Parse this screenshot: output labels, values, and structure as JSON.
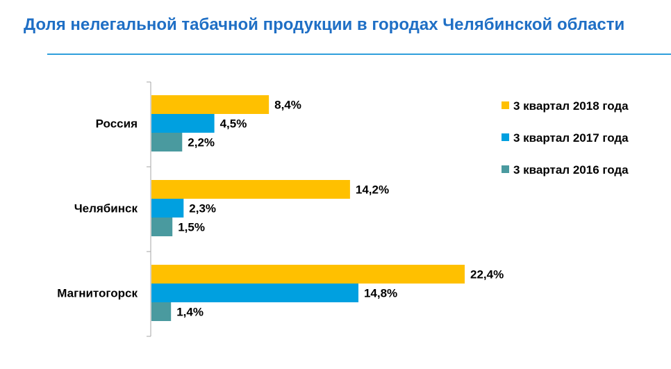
{
  "title": "Доля нелегальной табачной продукции в городах Челябинской области",
  "chart_data": {
    "type": "bar",
    "orientation": "horizontal",
    "categories": [
      "Россия",
      "Челябинск",
      "Магнитогорск"
    ],
    "series": [
      {
        "name": "3 квартал 2018 года",
        "color": "#ffc000",
        "values": [
          8.4,
          14.2,
          22.4
        ],
        "labels": [
          "8,4%",
          "14,2%",
          "22,4%"
        ]
      },
      {
        "name": "3 квартал 2017 года",
        "color": "#00a0e0",
        "values": [
          4.5,
          2.3,
          14.8
        ],
        "labels": [
          "4,5%",
          "2,3%",
          "14,8%"
        ]
      },
      {
        "name": "3 квартал 2016 года",
        "color": "#4a9a9f",
        "values": [
          2.2,
          1.5,
          1.4
        ],
        "labels": [
          "2,2%",
          "1,5%",
          "1,4%"
        ]
      }
    ],
    "xlim": [
      0,
      22.4
    ],
    "grid": false,
    "legend_position": "top-right"
  }
}
